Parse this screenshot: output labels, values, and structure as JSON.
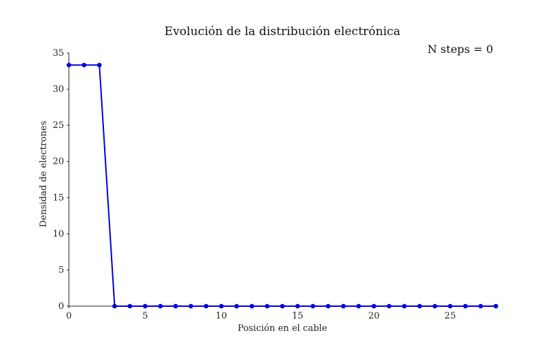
{
  "chart_data": {
    "type": "line",
    "title": "Evolución de la distribución electrónica",
    "annotation": "N steps = 0",
    "xlabel": "Posición en el cable",
    "ylabel": "Densidad de electrones",
    "xlim": [
      0,
      28
    ],
    "ylim": [
      0,
      35
    ],
    "xticks": [
      0,
      5,
      10,
      15,
      20,
      25
    ],
    "yticks": [
      0,
      5,
      10,
      15,
      20,
      25,
      30,
      35
    ],
    "grid": false,
    "series": [
      {
        "color": "#0000dd",
        "marker": "circle",
        "x": [
          0,
          1,
          2,
          3,
          4,
          5,
          6,
          7,
          8,
          9,
          10,
          11,
          12,
          13,
          14,
          15,
          16,
          17,
          18,
          19,
          20,
          21,
          22,
          23,
          24,
          25,
          26,
          27,
          28
        ],
        "y": [
          33.33,
          33.33,
          33.33,
          0,
          0,
          0,
          0,
          0,
          0,
          0,
          0,
          0,
          0,
          0,
          0,
          0,
          0,
          0,
          0,
          0,
          0,
          0,
          0,
          0,
          0,
          0,
          0,
          0,
          0
        ]
      }
    ]
  }
}
